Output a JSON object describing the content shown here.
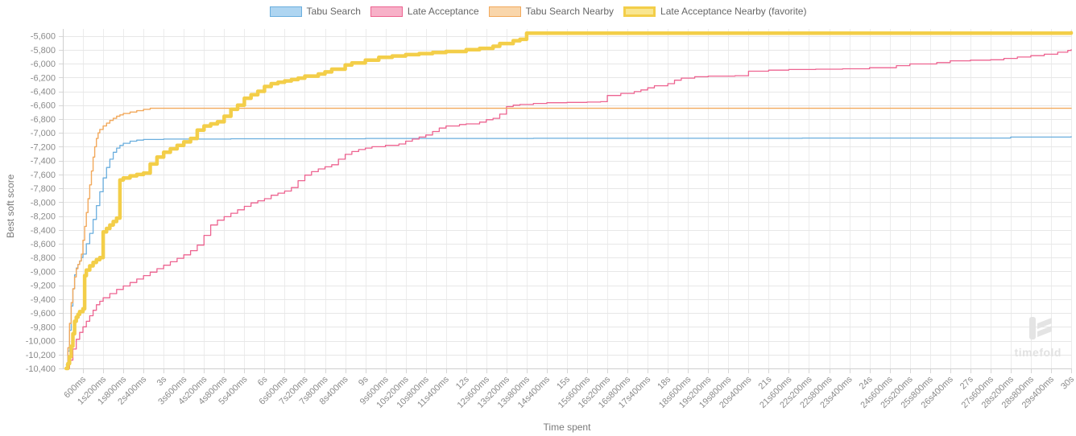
{
  "watermark": {
    "text": "timefold"
  },
  "chart_data": {
    "type": "line",
    "subtype": "step-after",
    "title": "",
    "xlabel": "Time spent",
    "ylabel": "Best soft score",
    "grid": true,
    "legend_position": "top",
    "x_unit": "ms",
    "xlim": [
      0,
      30000
    ],
    "ylim": [
      -10400,
      -5500
    ],
    "y_tick_start": -5600,
    "y_tick_step": -200,
    "y_tick_count": 25,
    "x_ticks": [
      {
        "ms": 600,
        "label": "600ms"
      },
      {
        "ms": 1200,
        "label": "1s200ms"
      },
      {
        "ms": 1800,
        "label": "1s800ms"
      },
      {
        "ms": 2400,
        "label": "2s400ms"
      },
      {
        "ms": 3000,
        "label": "3s"
      },
      {
        "ms": 3600,
        "label": "3s600ms"
      },
      {
        "ms": 4200,
        "label": "4s200ms"
      },
      {
        "ms": 4800,
        "label": "4s800ms"
      },
      {
        "ms": 5400,
        "label": "5s400ms"
      },
      {
        "ms": 6000,
        "label": "6s"
      },
      {
        "ms": 6600,
        "label": "6s600ms"
      },
      {
        "ms": 7200,
        "label": "7s200ms"
      },
      {
        "ms": 7800,
        "label": "7s800ms"
      },
      {
        "ms": 8400,
        "label": "8s400ms"
      },
      {
        "ms": 9000,
        "label": "9s"
      },
      {
        "ms": 9600,
        "label": "9s600ms"
      },
      {
        "ms": 10200,
        "label": "10s200ms"
      },
      {
        "ms": 10800,
        "label": "10s800ms"
      },
      {
        "ms": 11400,
        "label": "11s400ms"
      },
      {
        "ms": 12000,
        "label": "12s"
      },
      {
        "ms": 12600,
        "label": "12s600ms"
      },
      {
        "ms": 13200,
        "label": "13s200ms"
      },
      {
        "ms": 13800,
        "label": "13s800ms"
      },
      {
        "ms": 14400,
        "label": "14s400ms"
      },
      {
        "ms": 15000,
        "label": "15s"
      },
      {
        "ms": 15600,
        "label": "15s600ms"
      },
      {
        "ms": 16200,
        "label": "16s200ms"
      },
      {
        "ms": 16800,
        "label": "16s800ms"
      },
      {
        "ms": 17400,
        "label": "17s400ms"
      },
      {
        "ms": 18000,
        "label": "18s"
      },
      {
        "ms": 18600,
        "label": "18s600ms"
      },
      {
        "ms": 19200,
        "label": "19s200ms"
      },
      {
        "ms": 19800,
        "label": "19s800ms"
      },
      {
        "ms": 20400,
        "label": "20s400ms"
      },
      {
        "ms": 21000,
        "label": "21s"
      },
      {
        "ms": 21600,
        "label": "21s600ms"
      },
      {
        "ms": 22200,
        "label": "22s200ms"
      },
      {
        "ms": 22800,
        "label": "22s800ms"
      },
      {
        "ms": 23400,
        "label": "23s400ms"
      },
      {
        "ms": 24000,
        "label": "24s"
      },
      {
        "ms": 24600,
        "label": "24s600ms"
      },
      {
        "ms": 25200,
        "label": "25s200ms"
      },
      {
        "ms": 25800,
        "label": "25s800ms"
      },
      {
        "ms": 26400,
        "label": "26s400ms"
      },
      {
        "ms": 27000,
        "label": "27s"
      },
      {
        "ms": 27600,
        "label": "27s600ms"
      },
      {
        "ms": 28200,
        "label": "28s200ms"
      },
      {
        "ms": 28800,
        "label": "28s800ms"
      },
      {
        "ms": 29400,
        "label": "29s400ms"
      },
      {
        "ms": 30000,
        "label": "30s"
      }
    ],
    "series": [
      {
        "name": "Tabu Search",
        "color": "#6aaede",
        "legend_fill": "#aed5f1",
        "line_width": 1.3,
        "points": [
          [
            100,
            -10350
          ],
          [
            150,
            -10150
          ],
          [
            200,
            -9850
          ],
          [
            250,
            -9500
          ],
          [
            300,
            -9250
          ],
          [
            350,
            -9050
          ],
          [
            400,
            -8950
          ],
          [
            450,
            -8900
          ],
          [
            500,
            -8850
          ],
          [
            550,
            -8800
          ],
          [
            600,
            -8750
          ],
          [
            700,
            -8600
          ],
          [
            800,
            -8450
          ],
          [
            900,
            -8250
          ],
          [
            1000,
            -8050
          ],
          [
            1100,
            -7850
          ],
          [
            1200,
            -7650
          ],
          [
            1300,
            -7500
          ],
          [
            1400,
            -7380
          ],
          [
            1500,
            -7280
          ],
          [
            1600,
            -7220
          ],
          [
            1700,
            -7180
          ],
          [
            1800,
            -7150
          ],
          [
            2000,
            -7120
          ],
          [
            2200,
            -7105
          ],
          [
            2400,
            -7095
          ],
          [
            3000,
            -7090
          ],
          [
            5000,
            -7085
          ],
          [
            9000,
            -7080
          ],
          [
            14000,
            -7078
          ],
          [
            22000,
            -7075
          ],
          [
            28200,
            -7060
          ],
          [
            30000,
            -7055
          ]
        ]
      },
      {
        "name": "Late Acceptance",
        "color": "#ed6390",
        "legend_fill": "#f7b1c8",
        "line_width": 1.3,
        "points": [
          [
            100,
            -10400
          ],
          [
            200,
            -10280
          ],
          [
            300,
            -10120
          ],
          [
            400,
            -9980
          ],
          [
            500,
            -9880
          ],
          [
            600,
            -9800
          ],
          [
            700,
            -9720
          ],
          [
            800,
            -9640
          ],
          [
            900,
            -9560
          ],
          [
            1000,
            -9480
          ],
          [
            1100,
            -9430
          ],
          [
            1200,
            -9380
          ],
          [
            1400,
            -9320
          ],
          [
            1600,
            -9260
          ],
          [
            1800,
            -9210
          ],
          [
            2000,
            -9160
          ],
          [
            2200,
            -9110
          ],
          [
            2400,
            -9060
          ],
          [
            2600,
            -9010
          ],
          [
            2800,
            -8960
          ],
          [
            3000,
            -8910
          ],
          [
            3200,
            -8860
          ],
          [
            3400,
            -8810
          ],
          [
            3600,
            -8760
          ],
          [
            3800,
            -8700
          ],
          [
            4000,
            -8620
          ],
          [
            4200,
            -8480
          ],
          [
            4400,
            -8330
          ],
          [
            4600,
            -8260
          ],
          [
            4800,
            -8210
          ],
          [
            5000,
            -8160
          ],
          [
            5200,
            -8110
          ],
          [
            5400,
            -8060
          ],
          [
            5600,
            -8010
          ],
          [
            5800,
            -7980
          ],
          [
            6000,
            -7950
          ],
          [
            6200,
            -7900
          ],
          [
            6400,
            -7870
          ],
          [
            6600,
            -7840
          ],
          [
            6800,
            -7790
          ],
          [
            7000,
            -7690
          ],
          [
            7200,
            -7610
          ],
          [
            7400,
            -7560
          ],
          [
            7600,
            -7520
          ],
          [
            7800,
            -7490
          ],
          [
            8000,
            -7460
          ],
          [
            8200,
            -7380
          ],
          [
            8400,
            -7310
          ],
          [
            8600,
            -7270
          ],
          [
            8800,
            -7240
          ],
          [
            9000,
            -7220
          ],
          [
            9200,
            -7200
          ],
          [
            9600,
            -7180
          ],
          [
            10000,
            -7160
          ],
          [
            10200,
            -7120
          ],
          [
            10400,
            -7090
          ],
          [
            10600,
            -7060
          ],
          [
            10800,
            -7030
          ],
          [
            11000,
            -6980
          ],
          [
            11200,
            -6930
          ],
          [
            11400,
            -6900
          ],
          [
            11800,
            -6880
          ],
          [
            12000,
            -6870
          ],
          [
            12400,
            -6845
          ],
          [
            12600,
            -6810
          ],
          [
            12800,
            -6790
          ],
          [
            13000,
            -6730
          ],
          [
            13200,
            -6620
          ],
          [
            13400,
            -6600
          ],
          [
            13600,
            -6590
          ],
          [
            14000,
            -6575
          ],
          [
            14400,
            -6565
          ],
          [
            15000,
            -6560
          ],
          [
            15600,
            -6555
          ],
          [
            16000,
            -6550
          ],
          [
            16200,
            -6460
          ],
          [
            16600,
            -6430
          ],
          [
            17000,
            -6405
          ],
          [
            17200,
            -6380
          ],
          [
            17400,
            -6350
          ],
          [
            17600,
            -6320
          ],
          [
            18000,
            -6290
          ],
          [
            18200,
            -6240
          ],
          [
            18400,
            -6210
          ],
          [
            18800,
            -6190
          ],
          [
            19200,
            -6180
          ],
          [
            20000,
            -6175
          ],
          [
            20400,
            -6110
          ],
          [
            21000,
            -6095
          ],
          [
            21600,
            -6085
          ],
          [
            22400,
            -6080
          ],
          [
            23200,
            -6075
          ],
          [
            24000,
            -6060
          ],
          [
            24800,
            -6030
          ],
          [
            25200,
            -6005
          ],
          [
            26000,
            -5985
          ],
          [
            26400,
            -5960
          ],
          [
            27000,
            -5950
          ],
          [
            27600,
            -5945
          ],
          [
            28000,
            -5925
          ],
          [
            28400,
            -5905
          ],
          [
            28800,
            -5885
          ],
          [
            29200,
            -5865
          ],
          [
            29600,
            -5835
          ],
          [
            29900,
            -5810
          ],
          [
            30000,
            -5800
          ]
        ]
      },
      {
        "name": "Tabu Search Nearby",
        "color": "#f2a95c",
        "legend_fill": "#f9d6ab",
        "line_width": 1.4,
        "points": [
          [
            100,
            -10380
          ],
          [
            150,
            -10100
          ],
          [
            200,
            -9750
          ],
          [
            250,
            -9450
          ],
          [
            300,
            -9250
          ],
          [
            350,
            -9080
          ],
          [
            400,
            -8960
          ],
          [
            450,
            -8900
          ],
          [
            500,
            -8850
          ],
          [
            550,
            -8750
          ],
          [
            600,
            -8550
          ],
          [
            650,
            -8350
          ],
          [
            700,
            -8150
          ],
          [
            750,
            -7950
          ],
          [
            800,
            -7750
          ],
          [
            850,
            -7550
          ],
          [
            900,
            -7350
          ],
          [
            950,
            -7200
          ],
          [
            1000,
            -7080
          ],
          [
            1050,
            -7000
          ],
          [
            1100,
            -6950
          ],
          [
            1200,
            -6900
          ],
          [
            1300,
            -6860
          ],
          [
            1400,
            -6820
          ],
          [
            1500,
            -6790
          ],
          [
            1600,
            -6760
          ],
          [
            1700,
            -6740
          ],
          [
            1800,
            -6720
          ],
          [
            2000,
            -6700
          ],
          [
            2200,
            -6680
          ],
          [
            2400,
            -6660
          ],
          [
            2600,
            -6645
          ],
          [
            30000,
            -6645
          ]
        ]
      },
      {
        "name": "Late Acceptance Nearby (favorite)",
        "color": "#f3ce49",
        "legend_fill": "#f9e690",
        "line_width": 4.5,
        "points": [
          [
            100,
            -10400
          ],
          [
            150,
            -10330
          ],
          [
            200,
            -10230
          ],
          [
            250,
            -10080
          ],
          [
            300,
            -9900
          ],
          [
            350,
            -9720
          ],
          [
            400,
            -9660
          ],
          [
            450,
            -9620
          ],
          [
            500,
            -9580
          ],
          [
            600,
            -9540
          ],
          [
            650,
            -9060
          ],
          [
            700,
            -8980
          ],
          [
            800,
            -8920
          ],
          [
            900,
            -8870
          ],
          [
            1000,
            -8830
          ],
          [
            1100,
            -8800
          ],
          [
            1200,
            -8430
          ],
          [
            1300,
            -8380
          ],
          [
            1400,
            -8330
          ],
          [
            1500,
            -8280
          ],
          [
            1600,
            -8230
          ],
          [
            1700,
            -7680
          ],
          [
            1800,
            -7650
          ],
          [
            2000,
            -7620
          ],
          [
            2200,
            -7600
          ],
          [
            2400,
            -7580
          ],
          [
            2600,
            -7450
          ],
          [
            2800,
            -7350
          ],
          [
            3000,
            -7280
          ],
          [
            3200,
            -7230
          ],
          [
            3400,
            -7180
          ],
          [
            3600,
            -7130
          ],
          [
            3800,
            -7080
          ],
          [
            4000,
            -6960
          ],
          [
            4200,
            -6900
          ],
          [
            4400,
            -6870
          ],
          [
            4600,
            -6840
          ],
          [
            4800,
            -6760
          ],
          [
            5000,
            -6660
          ],
          [
            5200,
            -6600
          ],
          [
            5400,
            -6500
          ],
          [
            5600,
            -6450
          ],
          [
            5800,
            -6400
          ],
          [
            6000,
            -6330
          ],
          [
            6200,
            -6290
          ],
          [
            6400,
            -6270
          ],
          [
            6600,
            -6250
          ],
          [
            6800,
            -6230
          ],
          [
            7000,
            -6210
          ],
          [
            7200,
            -6180
          ],
          [
            7600,
            -6150
          ],
          [
            7800,
            -6120
          ],
          [
            8000,
            -6080
          ],
          [
            8400,
            -6020
          ],
          [
            8600,
            -5990
          ],
          [
            9000,
            -5950
          ],
          [
            9400,
            -5910
          ],
          [
            9800,
            -5890
          ],
          [
            10200,
            -5870
          ],
          [
            10600,
            -5855
          ],
          [
            11000,
            -5840
          ],
          [
            11400,
            -5825
          ],
          [
            12000,
            -5800
          ],
          [
            12400,
            -5780
          ],
          [
            12800,
            -5750
          ],
          [
            13000,
            -5710
          ],
          [
            13400,
            -5670
          ],
          [
            13600,
            -5650
          ],
          [
            13800,
            -5560
          ],
          [
            30000,
            -5555
          ]
        ]
      }
    ]
  }
}
